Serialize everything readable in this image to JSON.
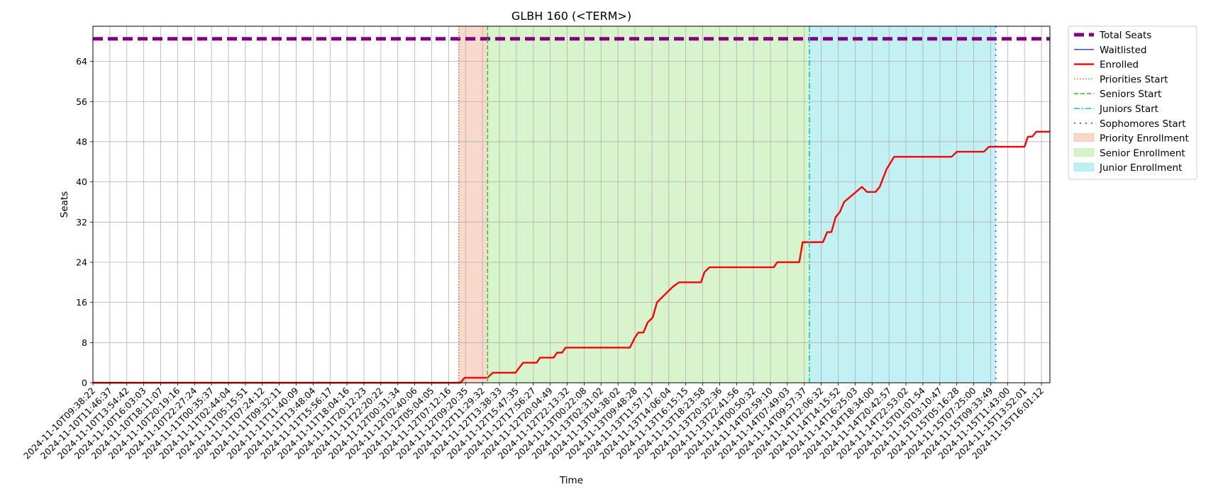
{
  "chart_data": {
    "type": "line",
    "title": "GLBH 160 (<TERM>)",
    "xlabel": "Time",
    "ylabel": "Seats",
    "ylim": [
      0,
      71
    ],
    "yticks": [
      0,
      8,
      16,
      24,
      32,
      40,
      48,
      56,
      64
    ],
    "grid": true,
    "legend_placement": "outside-top-right",
    "x_tick_labels": [
      "2024-11-10T09:38:22",
      "2024-11-10T11:46:37",
      "2024-11-10T13:54:42",
      "2024-11-10T16:03:03",
      "2024-11-10T18:11:07",
      "2024-11-10T20:19:16",
      "2024-11-10T22:27:24",
      "2024-11-11T00:35:37",
      "2024-11-11T02:44:04",
      "2024-11-11T05:15:51",
      "2024-11-11T07:24:12",
      "2024-11-11T09:32:11",
      "2024-11-11T11:40:09",
      "2024-11-11T13:48:04",
      "2024-11-11T15:56:17",
      "2024-11-11T18:04:16",
      "2024-11-11T20:12:23",
      "2024-11-11T22:20:22",
      "2024-11-12T00:31:34",
      "2024-11-12T02:40:06",
      "2024-11-12T05:04:05",
      "2024-11-12T07:12:16",
      "2024-11-12T09:20:35",
      "2024-11-12T11:29:32",
      "2024-11-12T13:38:33",
      "2024-11-12T15:47:35",
      "2024-11-12T17:56:27",
      "2024-11-12T20:04:49",
      "2024-11-12T22:13:32",
      "2024-11-13T00:22:08",
      "2024-11-13T02:31:02",
      "2024-11-13T04:38:02",
      "2024-11-13T09:48:28",
      "2024-11-13T11:57:17",
      "2024-11-13T14:06:04",
      "2024-11-13T16:15:15",
      "2024-11-13T18:23:58",
      "2024-11-13T20:32:36",
      "2024-11-13T22:41:56",
      "2024-11-14T00:50:32",
      "2024-11-14T02:59:10",
      "2024-11-14T07:49:03",
      "2024-11-14T09:57:37",
      "2024-11-14T12:06:32",
      "2024-11-14T14:15:52",
      "2024-11-14T16:25:03",
      "2024-11-14T18:34:00",
      "2024-11-14T20:42:57",
      "2024-11-14T22:53:02",
      "2024-11-15T01:01:54",
      "2024-11-15T03:10:47",
      "2024-11-15T05:16:28",
      "2024-11-15T07:25:00",
      "2024-11-15T09:33:49",
      "2024-11-15T11:43:00",
      "2024-11-15T13:52:01",
      "2024-11-15T16:01:12"
    ],
    "x_index_max": 56.5,
    "total_seats": 68.5,
    "enrolled": [
      [
        0,
        0
      ],
      [
        21.7,
        0
      ],
      [
        21.95,
        1
      ],
      [
        23.3,
        1
      ],
      [
        23.6,
        2
      ],
      [
        24.95,
        2
      ],
      [
        25.4,
        4
      ],
      [
        26.2,
        4
      ],
      [
        26.4,
        5
      ],
      [
        27.2,
        5
      ],
      [
        27.4,
        6
      ],
      [
        27.7,
        6
      ],
      [
        27.9,
        7
      ],
      [
        31.7,
        7
      ],
      [
        32.0,
        9
      ],
      [
        32.2,
        10
      ],
      [
        32.5,
        10
      ],
      [
        32.75,
        12
      ],
      [
        33.05,
        13
      ],
      [
        33.3,
        16
      ],
      [
        34.2,
        19
      ],
      [
        34.6,
        20
      ],
      [
        35.9,
        20
      ],
      [
        36.1,
        22
      ],
      [
        36.4,
        23
      ],
      [
        40.2,
        23
      ],
      [
        40.4,
        24
      ],
      [
        41.7,
        24
      ],
      [
        41.9,
        28
      ],
      [
        43.1,
        28
      ],
      [
        43.35,
        30
      ],
      [
        43.6,
        30
      ],
      [
        43.85,
        33
      ],
      [
        44.1,
        34
      ],
      [
        44.35,
        36
      ],
      [
        45.05,
        38
      ],
      [
        45.4,
        39
      ],
      [
        45.7,
        38
      ],
      [
        46.2,
        38
      ],
      [
        46.45,
        39
      ],
      [
        46.85,
        42.5
      ],
      [
        47.3,
        45
      ],
      [
        50.7,
        45
      ],
      [
        51.0,
        46
      ],
      [
        52.6,
        46
      ],
      [
        52.9,
        47
      ],
      [
        55.0,
        47
      ],
      [
        55.2,
        49
      ],
      [
        55.45,
        49
      ],
      [
        55.7,
        50
      ],
      [
        56.5,
        50
      ]
    ],
    "enrolled_segment_count": 50,
    "phase_lines": [
      {
        "name": "Priorities Start",
        "x": 21.6,
        "color": "#e8664a",
        "style": "dotted"
      },
      {
        "name": "Seniors Start",
        "x": 23.3,
        "color": "#36c932",
        "style": "dashed"
      },
      {
        "name": "Juniors Start",
        "x": 42.3,
        "color": "#13bfcc",
        "style": "dashdot"
      },
      {
        "name": "Sophomores Start",
        "x": 53.3,
        "color": "#5433ff",
        "style": "loosedot"
      }
    ],
    "phase_spans": [
      {
        "name": "Priority Enrollment",
        "start": 21.6,
        "end": 23.3,
        "color": "#f5c9b5"
      },
      {
        "name": "Senior Enrollment",
        "start": 23.3,
        "end": 42.3,
        "color": "#c8efb6"
      },
      {
        "name": "Junior Enrollment",
        "start": 42.3,
        "end": 53.3,
        "color": "#a8e9ee"
      }
    ],
    "legend": [
      {
        "label": "Total Seats",
        "kind": "line",
        "color": "#800080",
        "style": "dashed-thick"
      },
      {
        "label": "Waitlisted",
        "kind": "line",
        "color": "#3333ff",
        "style": "solid-thin"
      },
      {
        "label": "Enrolled",
        "kind": "line",
        "color": "#ff0000",
        "style": "solid"
      },
      {
        "label": "Priorities Start",
        "kind": "line",
        "color": "#e8664a",
        "style": "dotted"
      },
      {
        "label": "Seniors Start",
        "kind": "line",
        "color": "#36c932",
        "style": "dashed"
      },
      {
        "label": "Juniors Start",
        "kind": "line",
        "color": "#13bfcc",
        "style": "dashdot"
      },
      {
        "label": "Sophomores Start",
        "kind": "line",
        "color": "#5433ff",
        "style": "loosedot"
      },
      {
        "label": "Priority Enrollment",
        "kind": "patch",
        "color": "#f5c9b5"
      },
      {
        "label": "Senior Enrollment",
        "kind": "patch",
        "color": "#c8efb6"
      },
      {
        "label": "Junior Enrollment",
        "kind": "patch",
        "color": "#a8e9ee"
      }
    ]
  }
}
